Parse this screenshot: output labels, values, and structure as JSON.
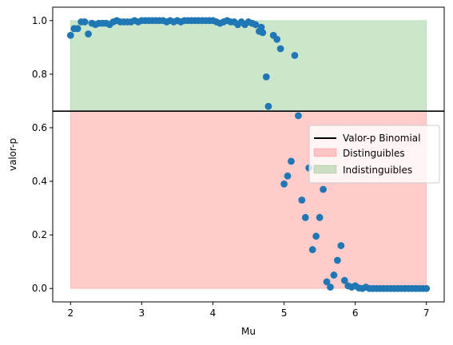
{
  "chart_data": {
    "type": "scatter",
    "title": "",
    "xlabel": "Mu",
    "ylabel": "valor-p",
    "xlim": [
      1.75,
      7.25
    ],
    "ylim": [
      -0.05,
      1.05
    ],
    "xticks": [
      2,
      3,
      4,
      5,
      6,
      7
    ],
    "yticks": [
      0.0,
      0.2,
      0.4,
      0.6,
      0.8,
      1.0
    ],
    "xtick_labels": [
      "2",
      "3",
      "4",
      "5",
      "6",
      "7"
    ],
    "ytick_labels": [
      "0.0",
      "0.2",
      "0.4",
      "0.6",
      "0.8",
      "1.0"
    ],
    "grid": false,
    "legend_position": "center-right",
    "hline": {
      "label": "Valor-p Binomial",
      "y": 0.662,
      "color": "#000000"
    },
    "regions": [
      {
        "label": "Distinguibles",
        "x": [
          2,
          7
        ],
        "y": [
          0,
          0.662
        ],
        "color": "#ff0000",
        "opacity": 0.2
      },
      {
        "label": "Indistinguibles",
        "x": [
          2,
          7
        ],
        "y": [
          0.662,
          1.0
        ],
        "color": "#008000",
        "opacity": 0.2
      }
    ],
    "marker_color": "#1f77b4",
    "points": [
      [
        2.0,
        0.945
      ],
      [
        2.05,
        0.97
      ],
      [
        2.1,
        0.97
      ],
      [
        2.15,
        0.995
      ],
      [
        2.2,
        0.995
      ],
      [
        2.25,
        0.95
      ],
      [
        2.3,
        0.99
      ],
      [
        2.35,
        0.985
      ],
      [
        2.4,
        0.99
      ],
      [
        2.45,
        0.99
      ],
      [
        2.5,
        0.99
      ],
      [
        2.55,
        0.985
      ],
      [
        2.6,
        0.995
      ],
      [
        2.65,
        1.0
      ],
      [
        2.7,
        0.995
      ],
      [
        2.75,
        0.995
      ],
      [
        2.8,
        0.995
      ],
      [
        2.85,
        0.995
      ],
      [
        2.9,
        1.0
      ],
      [
        2.95,
        0.995
      ],
      [
        3.0,
        1.0
      ],
      [
        3.05,
        1.0
      ],
      [
        3.1,
        1.0
      ],
      [
        3.15,
        1.0
      ],
      [
        3.2,
        1.0
      ],
      [
        3.25,
        1.0
      ],
      [
        3.3,
        1.0
      ],
      [
        3.35,
        0.995
      ],
      [
        3.4,
        1.0
      ],
      [
        3.45,
        0.995
      ],
      [
        3.5,
        1.0
      ],
      [
        3.55,
        0.995
      ],
      [
        3.6,
        1.0
      ],
      [
        3.65,
        1.0
      ],
      [
        3.7,
        1.0
      ],
      [
        3.75,
        1.0
      ],
      [
        3.8,
        1.0
      ],
      [
        3.85,
        1.0
      ],
      [
        3.9,
        1.0
      ],
      [
        3.95,
        1.0
      ],
      [
        4.0,
        1.0
      ],
      [
        4.05,
        0.995
      ],
      [
        4.1,
        0.99
      ],
      [
        4.15,
        0.995
      ],
      [
        4.2,
        1.0
      ],
      [
        4.25,
        0.995
      ],
      [
        4.3,
        0.995
      ],
      [
        4.35,
        0.985
      ],
      [
        4.4,
        0.995
      ],
      [
        4.45,
        0.985
      ],
      [
        4.5,
        0.995
      ],
      [
        4.55,
        0.99
      ],
      [
        4.6,
        0.985
      ],
      [
        4.65,
        0.96
      ],
      [
        4.68,
        0.975
      ],
      [
        4.7,
        0.955
      ],
      [
        4.75,
        0.79
      ],
      [
        4.78,
        0.68
      ],
      [
        4.85,
        0.945
      ],
      [
        4.9,
        0.93
      ],
      [
        4.95,
        0.895
      ],
      [
        5.0,
        0.39
      ],
      [
        5.05,
        0.42
      ],
      [
        5.1,
        0.475
      ],
      [
        5.15,
        0.87
      ],
      [
        5.2,
        0.645
      ],
      [
        5.25,
        0.33
      ],
      [
        5.3,
        0.265
      ],
      [
        5.35,
        0.45
      ],
      [
        5.4,
        0.145
      ],
      [
        5.45,
        0.195
      ],
      [
        5.5,
        0.265
      ],
      [
        5.55,
        0.37
      ],
      [
        5.6,
        0.025
      ],
      [
        5.65,
        0.005
      ],
      [
        5.7,
        0.05
      ],
      [
        5.75,
        0.105
      ],
      [
        5.8,
        0.16
      ],
      [
        5.85,
        0.03
      ],
      [
        5.9,
        0.01
      ],
      [
        5.95,
        0.005
      ],
      [
        6.0,
        0.01
      ],
      [
        6.05,
        0.002
      ],
      [
        6.1,
        0.0
      ],
      [
        6.15,
        0.005
      ],
      [
        6.2,
        0.0
      ],
      [
        6.25,
        0.0
      ],
      [
        6.3,
        0.0
      ],
      [
        6.35,
        0.0
      ],
      [
        6.4,
        0.0
      ],
      [
        6.45,
        0.0
      ],
      [
        6.5,
        0.0
      ],
      [
        6.55,
        0.0
      ],
      [
        6.6,
        0.0
      ],
      [
        6.65,
        0.0
      ],
      [
        6.7,
        0.0
      ],
      [
        6.75,
        0.0
      ],
      [
        6.8,
        0.0
      ],
      [
        6.85,
        0.0
      ],
      [
        6.9,
        0.0
      ],
      [
        6.95,
        0.0
      ],
      [
        7.0,
        0.0
      ]
    ]
  }
}
